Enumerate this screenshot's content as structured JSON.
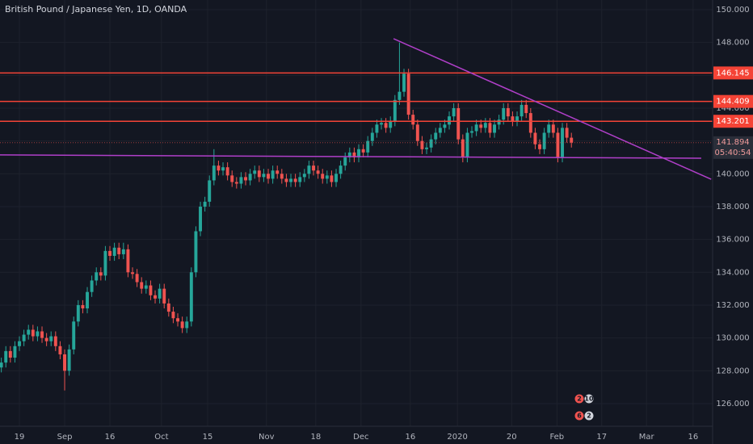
{
  "chart_data": {
    "type": "candlestick",
    "title": "British Pound / Japanese Yen, 1D, OANDA",
    "open": [
      128.2,
      128.5,
      129.2,
      128.8,
      129.5,
      129.8,
      130.2,
      130.5,
      130.1,
      130.4,
      130.0,
      129.8,
      130.1,
      129.5,
      129.0,
      128.0,
      129.3,
      131.0,
      132.0,
      131.8,
      132.8,
      133.5,
      134.0,
      133.8,
      135.3,
      135.0,
      135.5,
      135.1,
      135.4,
      134.0,
      133.9,
      133.4,
      133.0,
      133.2,
      132.6,
      132.4,
      133.0,
      132.1,
      131.6,
      131.2,
      131.0,
      130.6,
      131.0,
      134.0,
      136.5,
      138.0,
      138.3,
      139.6,
      140.5,
      140.2,
      140.4,
      139.9,
      139.5,
      139.4,
      139.8,
      139.6,
      140.0,
      140.2,
      139.8,
      140.0,
      139.7,
      140.2,
      140.0,
      139.7,
      139.5,
      139.7,
      139.5,
      139.8,
      140.0,
      140.5,
      140.2,
      140.0,
      139.7,
      139.9,
      139.5,
      140.0,
      140.5,
      141.0,
      141.3,
      141.0,
      141.5,
      141.3,
      142.0,
      142.5,
      143.0,
      143.1,
      142.8,
      143.2,
      144.5,
      145.0,
      146.1,
      143.6,
      143.0,
      142.0,
      141.5,
      141.6,
      142.1,
      142.5,
      142.8,
      143.0,
      143.5,
      144.0,
      142.1,
      141.0,
      142.5,
      142.6,
      143.0,
      142.8,
      143.1,
      142.5,
      143.0,
      143.3,
      144.0,
      143.5,
      143.2,
      143.5,
      144.2,
      143.7,
      142.5,
      141.8,
      141.5,
      142.5,
      143.0,
      142.5,
      141.0,
      142.8,
      142.2
    ],
    "high": [
      128.8,
      129.5,
      129.5,
      129.8,
      130.1,
      130.5,
      130.8,
      130.8,
      130.7,
      130.7,
      130.3,
      130.4,
      130.4,
      129.8,
      129.3,
      129.6,
      131.3,
      132.3,
      132.3,
      133.1,
      133.8,
      134.3,
      134.3,
      135.6,
      135.6,
      135.8,
      135.8,
      135.8,
      135.7,
      134.3,
      134.2,
      133.7,
      133.5,
      133.5,
      132.9,
      133.3,
      133.3,
      132.4,
      131.9,
      131.5,
      131.3,
      131.3,
      134.3,
      136.8,
      138.3,
      138.6,
      139.9,
      141.5,
      140.8,
      140.7,
      140.7,
      140.2,
      139.8,
      140.1,
      140.1,
      140.3,
      140.5,
      140.5,
      140.3,
      140.3,
      140.5,
      140.5,
      140.3,
      140.0,
      140.0,
      140.0,
      140.1,
      140.3,
      140.8,
      140.8,
      140.5,
      140.3,
      140.2,
      140.2,
      140.3,
      140.8,
      141.3,
      141.6,
      141.6,
      141.8,
      141.8,
      142.3,
      142.8,
      143.3,
      143.4,
      143.4,
      143.5,
      144.8,
      148.0,
      146.4,
      146.4,
      143.9,
      143.3,
      142.3,
      141.9,
      142.4,
      142.8,
      143.1,
      143.3,
      143.8,
      144.3,
      144.3,
      142.4,
      142.8,
      142.9,
      143.3,
      143.3,
      143.4,
      143.4,
      143.3,
      143.6,
      144.3,
      144.3,
      143.8,
      143.8,
      144.5,
      144.5,
      144.0,
      142.8,
      142.1,
      142.8,
      143.3,
      143.3,
      142.8,
      143.1,
      143.1,
      142.5
    ],
    "low": [
      127.9,
      128.2,
      128.5,
      128.5,
      129.2,
      129.5,
      129.9,
      129.8,
      129.8,
      129.7,
      129.5,
      129.5,
      129.2,
      128.7,
      126.8,
      127.7,
      129.0,
      130.7,
      131.5,
      131.5,
      132.5,
      133.2,
      133.5,
      133.5,
      134.7,
      134.7,
      134.8,
      134.8,
      133.7,
      133.6,
      133.1,
      132.7,
      132.7,
      132.3,
      132.1,
      132.1,
      131.8,
      131.3,
      130.9,
      130.7,
      130.3,
      130.3,
      130.7,
      133.7,
      136.2,
      137.7,
      138.0,
      139.3,
      139.9,
      139.9,
      139.6,
      139.2,
      139.1,
      139.1,
      139.3,
      139.3,
      139.7,
      139.5,
      139.5,
      139.4,
      139.4,
      139.7,
      139.4,
      139.2,
      139.2,
      139.2,
      139.2,
      139.5,
      139.7,
      139.9,
      139.7,
      139.4,
      139.4,
      139.2,
      139.2,
      139.7,
      140.2,
      140.7,
      140.7,
      140.7,
      141.0,
      141.0,
      141.7,
      142.2,
      142.7,
      142.5,
      142.5,
      142.9,
      144.2,
      144.7,
      143.3,
      142.7,
      141.7,
      141.2,
      141.2,
      141.3,
      141.8,
      142.2,
      142.5,
      142.7,
      143.2,
      141.8,
      140.7,
      140.7,
      142.2,
      142.3,
      142.5,
      142.5,
      142.2,
      142.2,
      142.7,
      143.0,
      143.2,
      142.9,
      142.9,
      143.2,
      143.4,
      142.2,
      141.5,
      141.2,
      141.2,
      142.2,
      142.2,
      140.7,
      140.7,
      141.9,
      141.6
    ],
    "close": [
      128.5,
      129.2,
      128.8,
      129.5,
      129.8,
      130.2,
      130.5,
      130.1,
      130.4,
      130.0,
      129.8,
      130.1,
      129.5,
      129.0,
      128.0,
      129.3,
      131.0,
      132.0,
      131.8,
      132.8,
      133.5,
      134.0,
      133.8,
      135.3,
      135.0,
      135.5,
      135.1,
      135.4,
      134.0,
      133.9,
      133.4,
      133.0,
      133.2,
      132.6,
      132.4,
      133.0,
      132.1,
      131.6,
      131.2,
      131.0,
      130.6,
      131.0,
      134.0,
      136.5,
      138.0,
      138.3,
      139.6,
      140.5,
      140.2,
      140.4,
      139.9,
      139.5,
      139.4,
      139.8,
      139.6,
      140.0,
      140.2,
      139.8,
      140.0,
      139.7,
      140.2,
      140.0,
      139.7,
      139.5,
      139.7,
      139.5,
      139.8,
      140.0,
      140.5,
      140.2,
      140.0,
      139.7,
      139.9,
      139.5,
      140.0,
      140.5,
      141.0,
      141.3,
      141.0,
      141.5,
      141.3,
      142.0,
      142.5,
      143.0,
      143.1,
      142.8,
      143.2,
      144.5,
      145.0,
      146.1,
      143.6,
      143.0,
      142.0,
      141.5,
      141.6,
      142.1,
      142.5,
      142.8,
      143.0,
      143.5,
      144.0,
      142.1,
      141.0,
      142.5,
      142.6,
      143.0,
      142.8,
      143.1,
      142.5,
      143.0,
      143.3,
      144.0,
      143.5,
      143.2,
      143.5,
      144.2,
      143.7,
      142.5,
      141.8,
      141.5,
      142.5,
      143.0,
      142.5,
      141.0,
      142.8,
      142.2,
      141.9
    ],
    "up_color": "#26a69a",
    "down_color": "#ef5350",
    "xlim": [
      -0.29,
      157.21
    ],
    "xticks": [
      {
        "value": 4,
        "label": "19"
      },
      {
        "value": 14,
        "label": "Sep"
      },
      {
        "value": 24,
        "label": "16"
      },
      {
        "value": 35.4,
        "label": "Oct"
      },
      {
        "value": 45.6,
        "label": "15"
      },
      {
        "value": 58.6,
        "label": "Nov"
      },
      {
        "value": 69.5,
        "label": "18"
      },
      {
        "value": 79.5,
        "label": "Dec"
      },
      {
        "value": 90.4,
        "label": "16"
      },
      {
        "value": 100.8,
        "label": "2020"
      },
      {
        "value": 112.8,
        "label": "20"
      },
      {
        "value": 122.8,
        "label": "Feb"
      },
      {
        "value": 132.7,
        "label": "17"
      },
      {
        "value": 142.6,
        "label": "Mar"
      },
      {
        "value": 152.9,
        "label": "16"
      }
    ],
    "ylim": [
      124.62,
      150.59
    ],
    "yticks": [
      {
        "value": 126,
        "label": "126.000"
      },
      {
        "value": 128,
        "label": "128.000"
      },
      {
        "value": 130,
        "label": "130.000"
      },
      {
        "value": 132,
        "label": "132.000"
      },
      {
        "value": 134,
        "label": "134.000"
      },
      {
        "value": 136,
        "label": "136.000"
      },
      {
        "value": 138,
        "label": "138.000"
      },
      {
        "value": 140,
        "label": "140.000"
      },
      {
        "value": 142,
        "label": "142.000"
      },
      {
        "value": 144,
        "label": "144.000"
      },
      {
        "value": 146,
        "label": "146.000"
      },
      {
        "value": 148,
        "label": "148.000"
      },
      {
        "value": 150,
        "label": "150.000"
      }
    ],
    "grid": true,
    "levels": [
      146.145,
      144.409,
      143.201
    ],
    "level_color": "#f44336",
    "last_price": 141.894,
    "countdown": "05:40:54",
    "trendlines": [
      {
        "x": [
          -0.29,
          154.7
        ],
        "y": [
          141.15,
          140.95
        ]
      },
      {
        "x": [
          86.7,
          156.9
        ],
        "y": [
          148.23,
          139.67
        ]
      }
    ],
    "trendline_color": "#b03fc9",
    "events": [
      "2",
      "10",
      "6",
      "2"
    ]
  }
}
